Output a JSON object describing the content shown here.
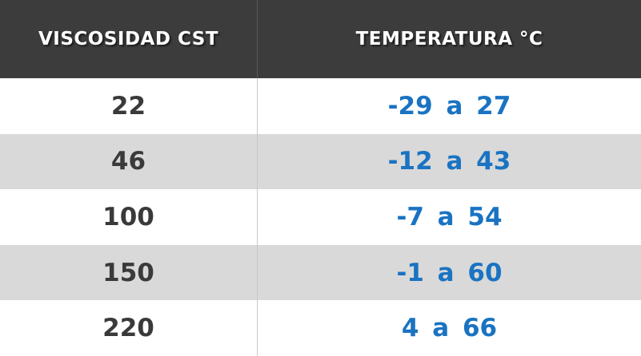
{
  "table": {
    "headers": [
      "VISCOSIDAD CST",
      "TEMPERATURA °C"
    ],
    "rows": [
      {
        "viscosity": "22",
        "temperature": "-29 a 27"
      },
      {
        "viscosity": "46",
        "temperature": "-12 a 43"
      },
      {
        "viscosity": "100",
        "temperature": "-7 a 54"
      },
      {
        "viscosity": "150",
        "temperature": "-1 a 60"
      },
      {
        "viscosity": "220",
        "temperature": "4 a 66"
      }
    ]
  },
  "colors": {
    "header_bg": "#3c3c3c",
    "alt_row_bg": "#d9d9d9",
    "viscosity_text": "#3a3a3a",
    "temperature_text": "#1a73c2"
  }
}
